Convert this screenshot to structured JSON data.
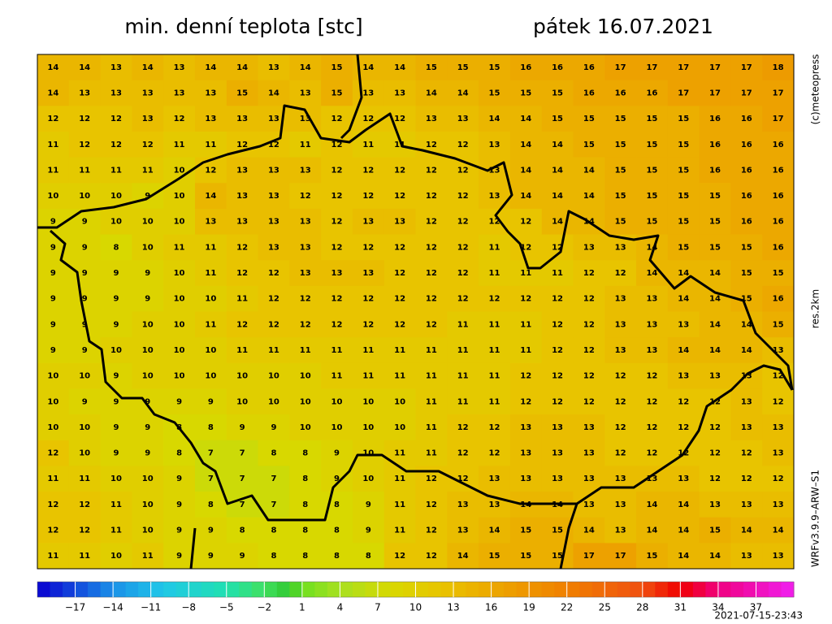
{
  "header": {
    "title": "min. denní teplota [stc]",
    "date": "pátek 16.07.2021"
  },
  "side_labels": {
    "credit": "(c)meteopress",
    "resolution": "res.2km",
    "model": "WRFv3.9.9–ARW–S1"
  },
  "footer": {
    "timestamp": "2021-07-15-23:43"
  },
  "colormap": [
    {
      "value": -20,
      "color": "#0a00d0"
    },
    {
      "value": -14,
      "color": "#1a90e8"
    },
    {
      "value": -10,
      "color": "#20c8e8"
    },
    {
      "value": -5,
      "color": "#20e0b0"
    },
    {
      "value": -2,
      "color": "#40e060"
    },
    {
      "value": 0,
      "color": "#30c830"
    },
    {
      "value": 1,
      "color": "#70e020"
    },
    {
      "value": 4,
      "color": "#a8e020"
    },
    {
      "value": 8,
      "color": "#d8d800"
    },
    {
      "value": 12,
      "color": "#e8c400"
    },
    {
      "value": 16,
      "color": "#eca800"
    },
    {
      "value": 22,
      "color": "#f08000"
    },
    {
      "value": 28,
      "color": "#f05010"
    },
    {
      "value": 31,
      "color": "#f00000"
    },
    {
      "value": 34,
      "color": "#f00080"
    },
    {
      "value": 40,
      "color": "#f020f0"
    }
  ],
  "colorbar": {
    "range": [
      -20,
      40
    ],
    "ticks": [
      {
        "value": -17,
        "label": "−17"
      },
      {
        "value": -14,
        "label": "−14"
      },
      {
        "value": -11,
        "label": "−11"
      },
      {
        "value": -8,
        "label": "−8"
      },
      {
        "value": -5,
        "label": "−5"
      },
      {
        "value": -2,
        "label": "−2"
      },
      1,
      4,
      7,
      10,
      13,
      16,
      19,
      22,
      25,
      28,
      31,
      34,
      37
    ]
  },
  "map": {
    "grid": [
      [
        14,
        14,
        13,
        14,
        13,
        14,
        14,
        13,
        14,
        15,
        14,
        14,
        15,
        15,
        15,
        16,
        16,
        16,
        17,
        17,
        17,
        17,
        17,
        18
      ],
      [
        14,
        13,
        13,
        13,
        13,
        13,
        15,
        14,
        13,
        15,
        13,
        13,
        14,
        14,
        15,
        15,
        15,
        16,
        16,
        16,
        17,
        17,
        17,
        17
      ],
      [
        12,
        12,
        12,
        13,
        12,
        13,
        13,
        13,
        13,
        12,
        12,
        12,
        13,
        13,
        14,
        14,
        15,
        15,
        15,
        15,
        15,
        16,
        16,
        17
      ],
      [
        11,
        12,
        12,
        12,
        11,
        11,
        12,
        12,
        11,
        12,
        11,
        11,
        12,
        12,
        13,
        14,
        14,
        15,
        15,
        15,
        15,
        16,
        16,
        16
      ],
      [
        11,
        11,
        11,
        11,
        10,
        12,
        13,
        13,
        13,
        12,
        12,
        12,
        12,
        12,
        13,
        14,
        14,
        14,
        15,
        15,
        15,
        16,
        16,
        16
      ],
      [
        10,
        10,
        10,
        9,
        10,
        14,
        13,
        13,
        12,
        12,
        12,
        12,
        12,
        12,
        13,
        14,
        14,
        14,
        15,
        15,
        15,
        15,
        16,
        16
      ],
      [
        9,
        9,
        10,
        10,
        10,
        13,
        13,
        13,
        13,
        12,
        13,
        13,
        12,
        12,
        12,
        12,
        14,
        14,
        15,
        15,
        15,
        15,
        16,
        16
      ],
      [
        9,
        9,
        8,
        10,
        11,
        11,
        12,
        13,
        13,
        12,
        12,
        12,
        12,
        12,
        11,
        12,
        12,
        13,
        13,
        14,
        15,
        15,
        15,
        16
      ],
      [
        9,
        9,
        9,
        9,
        10,
        11,
        12,
        12,
        13,
        13,
        13,
        12,
        12,
        12,
        11,
        11,
        11,
        12,
        12,
        14,
        14,
        14,
        15,
        15
      ],
      [
        9,
        9,
        9,
        9,
        10,
        10,
        11,
        12,
        12,
        12,
        12,
        12,
        12,
        12,
        12,
        12,
        12,
        12,
        13,
        13,
        14,
        14,
        15,
        16
      ],
      [
        9,
        9,
        9,
        10,
        10,
        11,
        12,
        12,
        12,
        12,
        12,
        12,
        12,
        11,
        11,
        11,
        12,
        12,
        13,
        13,
        13,
        14,
        14,
        15
      ],
      [
        9,
        9,
        10,
        10,
        10,
        10,
        11,
        11,
        11,
        11,
        11,
        11,
        11,
        11,
        11,
        11,
        12,
        12,
        13,
        13,
        14,
        14,
        14,
        13
      ],
      [
        10,
        10,
        9,
        10,
        10,
        10,
        10,
        10,
        10,
        11,
        11,
        11,
        11,
        11,
        11,
        12,
        12,
        12,
        12,
        12,
        13,
        13,
        13,
        12
      ],
      [
        10,
        9,
        9,
        9,
        9,
        9,
        10,
        10,
        10,
        10,
        10,
        10,
        11,
        11,
        11,
        12,
        12,
        12,
        12,
        12,
        12,
        12,
        13,
        12
      ],
      [
        10,
        10,
        9,
        9,
        8,
        8,
        9,
        9,
        10,
        10,
        10,
        10,
        11,
        12,
        12,
        13,
        13,
        13,
        12,
        12,
        12,
        12,
        13,
        13
      ],
      [
        12,
        10,
        9,
        9,
        8,
        7,
        7,
        8,
        8,
        9,
        10,
        11,
        11,
        12,
        12,
        13,
        13,
        13,
        12,
        12,
        12,
        12,
        12,
        13
      ],
      [
        11,
        11,
        10,
        10,
        9,
        7,
        7,
        7,
        8,
        9,
        10,
        11,
        12,
        12,
        13,
        13,
        13,
        13,
        13,
        13,
        13,
        12,
        12,
        12
      ],
      [
        12,
        12,
        11,
        10,
        9,
        8,
        7,
        7,
        8,
        8,
        9,
        11,
        12,
        13,
        13,
        14,
        14,
        13,
        13,
        14,
        14,
        13,
        13,
        13
      ],
      [
        12,
        12,
        11,
        10,
        9,
        9,
        8,
        8,
        8,
        8,
        9,
        11,
        12,
        13,
        14,
        15,
        15,
        14,
        13,
        14,
        14,
        15,
        14,
        14
      ],
      [
        11,
        11,
        10,
        11,
        9,
        9,
        9,
        8,
        8,
        8,
        8,
        12,
        12,
        14,
        15,
        15,
        15,
        17,
        17,
        15,
        14,
        14,
        13,
        13
      ]
    ]
  }
}
